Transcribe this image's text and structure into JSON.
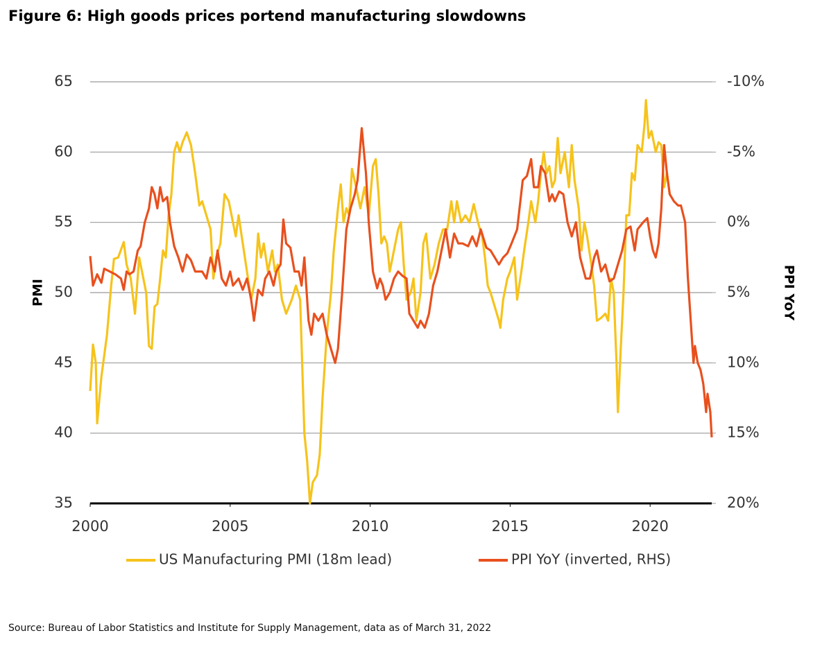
{
  "chart_data": {
    "type": "line",
    "title": "Figure 6: High goods prices portend manufacturing slowdowns",
    "y_label": "PMI",
    "y2_label": "PPI YoY",
    "source": "Source: Bureau of Labor Statistics and Institute for Supply Management, data as of March 31, 2022",
    "xlim": [
      2000,
      2022.2
    ],
    "xticks": [
      2000,
      2005,
      2010,
      2015,
      2020
    ],
    "ylim": [
      35,
      65
    ],
    "yticks": [
      35,
      40,
      45,
      50,
      55,
      60,
      65
    ],
    "y2lim": [
      20,
      -10
    ],
    "y2ticks": [
      {
        "value": 20,
        "label": "20%"
      },
      {
        "value": 15,
        "label": "15%"
      },
      {
        "value": 10,
        "label": "10%"
      },
      {
        "value": 5,
        "label": "5%"
      },
      {
        "value": 0,
        "label": "0%"
      },
      {
        "value": -5,
        "label": "-5%"
      },
      {
        "value": -10,
        "label": "-10%"
      }
    ],
    "grid": true,
    "series": [
      {
        "name": "US Manufacturing PMI (18m lead)",
        "color": "#f6c31c",
        "x": [
          2000.0,
          2000.1,
          2000.2,
          2000.25,
          2000.4,
          2000.6,
          2000.75,
          2000.85,
          2001.0,
          2001.2,
          2001.3,
          2001.45,
          2001.6,
          2001.75,
          2001.9,
          2002.0,
          2002.1,
          2002.2,
          2002.3,
          2002.4,
          2002.5,
          2002.6,
          2002.7,
          2002.8,
          2002.9,
          2003.0,
          2003.1,
          2003.2,
          2003.3,
          2003.45,
          2003.6,
          2003.75,
          2003.9,
          2004.0,
          2004.15,
          2004.3,
          2004.4,
          2004.5,
          2004.65,
          2004.8,
          2004.95,
          2005.1,
          2005.2,
          2005.3,
          2005.45,
          2005.6,
          2005.75,
          2005.9,
          2006.0,
          2006.1,
          2006.2,
          2006.35,
          2006.5,
          2006.6,
          2006.7,
          2006.85,
          2007.0,
          2007.1,
          2007.2,
          2007.35,
          2007.5,
          2007.65,
          2007.75,
          2007.85,
          2007.95,
          2008.1,
          2008.2,
          2008.3,
          2008.45,
          2008.6,
          2008.7,
          2008.85,
          2008.95,
          2009.05,
          2009.15,
          2009.25,
          2009.35,
          2009.5,
          2009.65,
          2009.8,
          2009.95,
          2010.1,
          2010.2,
          2010.3,
          2010.4,
          2010.5,
          2010.6,
          2010.7,
          2010.85,
          2011.0,
          2011.1,
          2011.2,
          2011.3,
          2011.45,
          2011.55,
          2011.65,
          2011.8,
          2011.9,
          2012.0,
          2012.15,
          2012.3,
          2012.45,
          2012.6,
          2012.75,
          2012.9,
          2013.0,
          2013.1,
          2013.25,
          2013.4,
          2013.55,
          2013.7,
          2013.85,
          2014.0,
          2014.1,
          2014.2,
          2014.3,
          2014.45,
          2014.6,
          2014.65,
          2014.75,
          2014.9,
          2015.0,
          2015.15,
          2015.25,
          2015.4,
          2015.5,
          2015.65,
          2015.75,
          2015.9,
          2016.0,
          2016.1,
          2016.2,
          2016.3,
          2016.4,
          2016.5,
          2016.6,
          2016.7,
          2016.8,
          2016.95,
          2017.1,
          2017.2,
          2017.3,
          2017.45,
          2017.55,
          2017.65,
          2017.75,
          2017.9,
          2018.0,
          2018.1,
          2018.25,
          2018.4,
          2018.5,
          2018.6,
          2018.7,
          2018.8,
          2018.85,
          2018.95,
          2019.05,
          2019.15,
          2019.25,
          2019.35,
          2019.45,
          2019.55,
          2019.7,
          2019.8,
          2019.85,
          2019.95,
          2020.05,
          2020.2,
          2020.3,
          2020.4,
          2020.5,
          2020.6,
          2020.7
        ],
        "values": [
          43,
          46.3,
          45,
          40.7,
          44,
          47,
          50.5,
          52.4,
          52.5,
          53.6,
          52,
          51,
          48.5,
          52.5,
          51,
          50,
          46.2,
          46,
          49,
          49.2,
          51,
          53,
          52.5,
          55.5,
          57,
          60,
          60.7,
          60,
          60.7,
          61.4,
          60.5,
          58.5,
          56.2,
          56.5,
          55.5,
          54.5,
          51,
          52.5,
          53.5,
          57,
          56.5,
          55,
          54,
          55.5,
          53.5,
          51.5,
          49.5,
          51,
          54.2,
          52.5,
          53.5,
          51.5,
          53,
          51.5,
          52,
          49.5,
          48.5,
          49,
          49.5,
          50.5,
          49.5,
          40,
          38,
          35,
          36.5,
          37,
          38.5,
          42.5,
          47,
          50,
          53,
          56,
          57.7,
          55,
          56,
          55.5,
          58.8,
          57.5,
          56,
          57.5,
          55.5,
          59,
          59.5,
          57,
          53.5,
          54,
          53.5,
          51.5,
          53,
          54.5,
          55,
          52,
          49.5,
          50,
          51,
          48,
          50,
          53.5,
          54.2,
          51,
          52,
          53.5,
          54.5,
          54.5,
          56.5,
          55,
          56.5,
          55,
          55.5,
          55,
          56.3,
          55,
          54,
          52.5,
          50.5,
          50,
          49,
          48,
          47.5,
          49.5,
          51,
          51.5,
          52.5,
          49.5,
          51.5,
          53,
          55,
          56.5,
          55,
          56.5,
          58.5,
          60,
          58.5,
          59,
          57.5,
          58,
          61,
          58.5,
          60,
          57.5,
          60.5,
          58,
          56,
          53,
          55,
          54,
          52,
          50.5,
          48,
          48.2,
          48.5,
          48,
          51,
          50,
          45,
          41.5,
          46,
          50,
          55.5,
          55.5,
          58.5,
          58,
          60.5,
          60,
          62,
          63.7,
          61,
          61.5,
          60,
          60.7,
          60.5,
          57.5,
          58.5,
          57
        ]
      },
      {
        "name": "PPI YoY (inverted, RHS)",
        "color": "#e8501e",
        "axis": "y2",
        "x": [
          2000.0,
          2000.1,
          2000.25,
          2000.4,
          2000.5,
          2000.7,
          2000.9,
          2001.1,
          2001.2,
          2001.3,
          2001.4,
          2001.55,
          2001.7,
          2001.8,
          2001.95,
          2002.1,
          2002.2,
          2002.3,
          2002.4,
          2002.5,
          2002.6,
          2002.75,
          2002.85,
          2003.0,
          2003.15,
          2003.3,
          2003.45,
          2003.6,
          2003.75,
          2004.0,
          2004.15,
          2004.3,
          2004.45,
          2004.55,
          2004.7,
          2004.85,
          2005.0,
          2005.1,
          2005.3,
          2005.45,
          2005.6,
          2005.75,
          2005.85,
          2006.0,
          2006.15,
          2006.25,
          2006.4,
          2006.55,
          2006.65,
          2006.8,
          2006.9,
          2007.0,
          2007.15,
          2007.3,
          2007.45,
          2007.55,
          2007.65,
          2007.8,
          2007.9,
          2008.0,
          2008.15,
          2008.3,
          2008.45,
          2008.6,
          2008.75,
          2008.85,
          2009.0,
          2009.15,
          2009.3,
          2009.45,
          2009.55,
          2009.7,
          2009.85,
          2009.95,
          2010.1,
          2010.25,
          2010.35,
          2010.45,
          2010.55,
          2010.7,
          2010.85,
          2011.0,
          2011.15,
          2011.3,
          2011.4,
          2011.55,
          2011.7,
          2011.8,
          2011.95,
          2012.1,
          2012.25,
          2012.4,
          2012.55,
          2012.7,
          2012.85,
          2013.0,
          2013.15,
          2013.3,
          2013.5,
          2013.65,
          2013.8,
          2013.95,
          2014.15,
          2014.3,
          2014.45,
          2014.6,
          2014.75,
          2014.9,
          2015.05,
          2015.25,
          2015.45,
          2015.6,
          2015.75,
          2015.85,
          2016.0,
          2016.1,
          2016.25,
          2016.4,
          2016.5,
          2016.6,
          2016.75,
          2016.9,
          2017.05,
          2017.2,
          2017.35,
          2017.5,
          2017.7,
          2017.85,
          2018.0,
          2018.1,
          2018.25,
          2018.4,
          2018.55,
          2018.7,
          2018.85,
          2019.0,
          2019.15,
          2019.3,
          2019.45,
          2019.55,
          2019.75,
          2019.9,
          2020.0,
          2020.1,
          2020.2,
          2020.3,
          2020.4,
          2020.5,
          2020.6,
          2020.7,
          2020.85,
          2021.0,
          2021.1,
          2021.25,
          2021.35,
          2021.45,
          2021.55,
          2021.6,
          2021.7,
          2021.8,
          2021.9,
          2022.0,
          2022.05,
          2022.15,
          2022.2
        ],
        "values": [
          2.4,
          4.5,
          3.7,
          4.3,
          3.3,
          3.5,
          3.7,
          4,
          4.8,
          3.5,
          3.7,
          3.5,
          2,
          1.7,
          0,
          -1,
          -2.5,
          -2,
          -1,
          -2.5,
          -1.5,
          -1.8,
          0,
          1.7,
          2.5,
          3.5,
          2.3,
          2.7,
          3.5,
          3.5,
          4,
          2.5,
          3.5,
          2,
          4,
          4.5,
          3.5,
          4.5,
          4,
          4.8,
          4,
          5.5,
          7,
          4.8,
          5.2,
          4,
          3.5,
          4.5,
          3.5,
          3,
          -0.2,
          1.5,
          1.8,
          3.5,
          3.5,
          4.5,
          2.5,
          7,
          8,
          6.5,
          7,
          6.5,
          8,
          9,
          10,
          9,
          5,
          0.5,
          -1,
          -2,
          -3,
          -6.7,
          -3.5,
          0,
          3.5,
          4.7,
          4,
          4.5,
          5.5,
          5,
          4,
          3.5,
          3.8,
          4,
          6.5,
          7,
          7.5,
          7,
          7.5,
          6.5,
          4.5,
          3.5,
          2,
          0.5,
          2.5,
          0.8,
          1.5,
          1.5,
          1.7,
          1,
          1.7,
          0.5,
          1.8,
          2,
          2.5,
          3,
          2.5,
          2.2,
          1.5,
          0.5,
          -3,
          -3.3,
          -4.5,
          -2.5,
          -2.5,
          -4,
          -3.5,
          -1.5,
          -2,
          -1.5,
          -2.2,
          -2,
          0,
          1,
          0,
          2.5,
          4,
          4,
          2.5,
          2,
          3.5,
          3,
          4.2,
          4,
          3,
          2,
          0.5,
          0.3,
          2,
          0.5,
          0,
          -0.3,
          1,
          2,
          2.5,
          1.5,
          -1,
          -5.5,
          -3.5,
          -2,
          -1.5,
          -1.2,
          -1.2,
          0,
          4,
          7,
          10,
          8.8,
          10,
          10.5,
          11.5,
          13.5,
          12.2,
          13.5,
          15.3
        ]
      }
    ]
  }
}
